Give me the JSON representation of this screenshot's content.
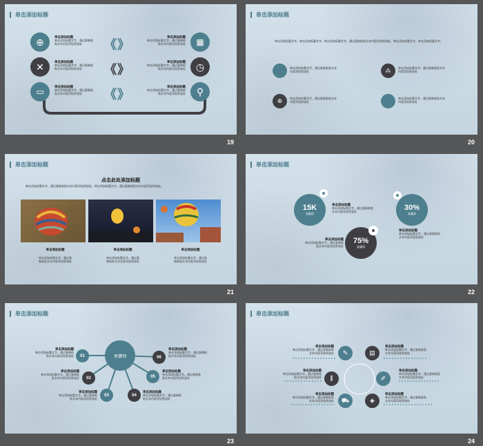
{
  "slides": [
    {
      "number": "19",
      "title": "单击添加标题",
      "item_title": "单击添加标题",
      "item_text": "单击添加标题文字，通过复制粘贴文本内容添加到该处"
    },
    {
      "number": "20",
      "title": "单击添加标题",
      "paragraph": "单击添加标题文字，单击添加标题文字，单击添加标题文字，通过复制粘贴文本内容添加到该处，单击添加标题文字，单击添加标题文字。",
      "item_text": "单击添加标题文字，通过复制粘贴文本内容添加到该处"
    },
    {
      "number": "21",
      "title": "单击添加标题",
      "heading": "点击此处添加标题",
      "paragraph": "单击添加标题文字，通过复制粘贴文本内容添加到该处。单击添加标题文字，通过复制粘贴文本内容添加到该处。",
      "caption_title": "单击添加标题",
      "caption_text": "单击添加标题文字，通过复制粘贴文本内容添加到该处"
    },
    {
      "number": "22",
      "title": "单击添加标题",
      "stat1": "15K",
      "stat2": "30%",
      "stat3": "75%",
      "keyword": "关键词",
      "item_title": "单击添加标题",
      "item_text": "单击添加标题文字，通过复制粘贴文本内容添加到该处"
    },
    {
      "number": "23",
      "title": "单击添加标题",
      "center": "关键词",
      "nodes": [
        "01",
        "02",
        "03",
        "04",
        "05",
        "06"
      ],
      "item_title": "单击添加标题",
      "item_text": "单击添加标题文字，通过复制粘贴文本内容添加到该处"
    },
    {
      "number": "24",
      "title": "单击添加标题",
      "item_title": "单击添加标题",
      "item_text": "单击添加标题文字，通过复制粘贴文本内容添加到该处"
    }
  ],
  "colors": {
    "teal": "#4d7f8e",
    "dark": "#3f3f43",
    "background": "#555658",
    "slide": "#cfdde6"
  }
}
